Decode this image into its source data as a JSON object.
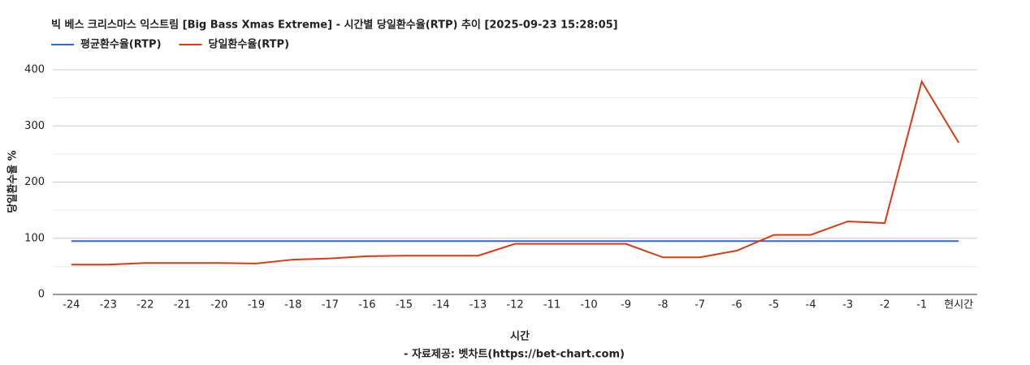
{
  "chart_data": {
    "type": "line",
    "title": "빅 베스 크리스마스 익스트림 [Big Bass Xmas Extreme] - 시간별 당일환수율(RTP) 추이 [2025-09-23 15:28:05]",
    "x_label": "시간",
    "y_label": "당일환수율 %",
    "source": "- 자료제공: 벳차트(https://bet-chart.com)",
    "categories": [
      "-24",
      "-23",
      "-22",
      "-21",
      "-20",
      "-19",
      "-18",
      "-17",
      "-16",
      "-15",
      "-14",
      "-13",
      "-12",
      "-11",
      "-10",
      "-9",
      "-8",
      "-7",
      "-6",
      "-5",
      "-4",
      "-3",
      "-2",
      "-1",
      "현시간"
    ],
    "series": [
      {
        "name": "평균환수율(RTP)",
        "color": "#3366cc",
        "values": [
          95,
          95,
          95,
          95,
          95,
          95,
          95,
          95,
          95,
          95,
          95,
          95,
          95,
          95,
          95,
          95,
          95,
          95,
          95,
          95,
          95,
          95,
          95,
          95,
          95
        ]
      },
      {
        "name": "당일환수율(RTP)",
        "color": "#dc3912",
        "values": [
          53,
          53,
          56,
          56,
          56,
          55,
          62,
          64,
          68,
          69,
          69,
          69,
          90,
          90,
          90,
          90,
          66,
          66,
          78,
          106,
          106,
          130,
          127,
          379,
          270
        ]
      }
    ],
    "ylim": [
      0,
      400
    ],
    "yticks": [
      0,
      100,
      200,
      300,
      400
    ],
    "minor_yticks": [
      50,
      150,
      250,
      350
    ],
    "grid": true,
    "legend": "top-left"
  }
}
